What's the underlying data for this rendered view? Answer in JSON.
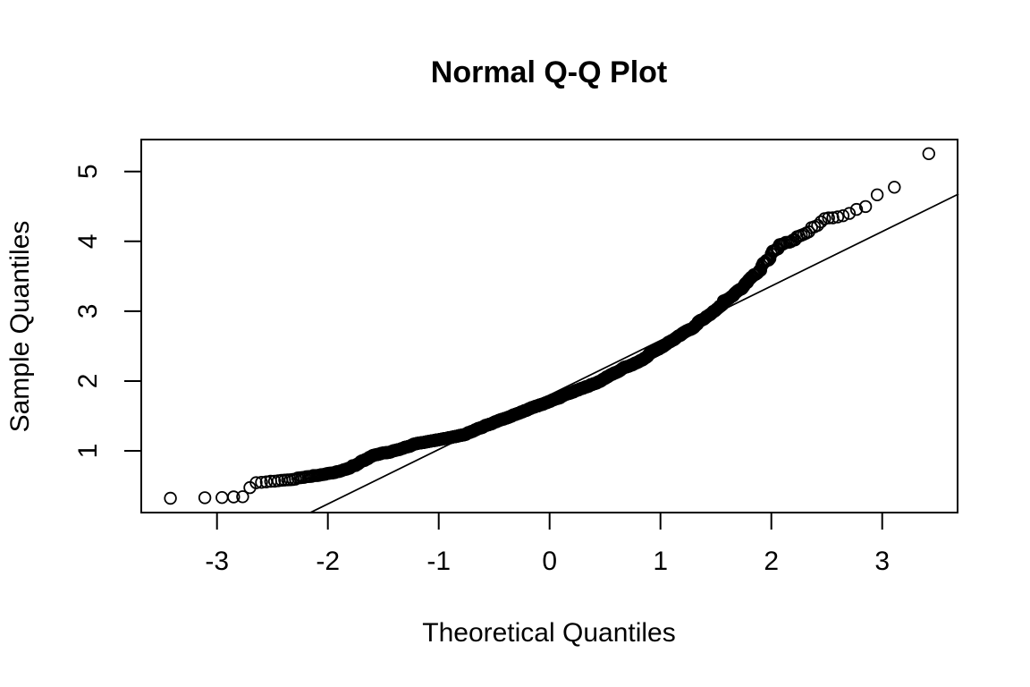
{
  "title": "Normal Q-Q Plot",
  "x_axis": {
    "label": "Theoretical Quantiles",
    "ticks": [
      -3,
      -2,
      -1,
      0,
      1,
      2,
      3
    ],
    "range": [
      -3.675,
      3.688
    ]
  },
  "y_axis": {
    "label": "Sample Quantiles",
    "ticks": [
      1,
      2,
      3,
      4,
      5
    ],
    "range": [
      0.115,
      5.457
    ]
  },
  "colors": {
    "foreground": "#000000",
    "background": "#ffffff"
  },
  "chart_data": {
    "type": "scatter",
    "subtype": "normal-qq-plot",
    "title": "Normal Q-Q Plot",
    "xlabel": "Theoretical Quantiles",
    "ylabel": "Sample Quantiles",
    "xlim": [
      -3.675,
      3.688
    ],
    "ylim": [
      0.115,
      5.457
    ],
    "grid": false,
    "marker": "open-circle",
    "n_points": 1600,
    "seed": 42,
    "jitter_sd": 0.032,
    "x_min_point": -3.42,
    "x_max_point": 3.42,
    "y_min_point": 0.32,
    "y_max_point": 5.24,
    "curve_points": [
      [
        -3.42,
        0.32
      ],
      [
        -3.1,
        0.33
      ],
      [
        -2.95,
        0.33
      ],
      [
        -2.86,
        0.34
      ],
      [
        -2.79,
        0.34
      ],
      [
        -2.74,
        0.35
      ],
      [
        -2.68,
        0.54
      ],
      [
        -2.5,
        0.57
      ],
      [
        -2.3,
        0.6
      ],
      [
        -2.0,
        0.67
      ],
      [
        -1.75,
        0.79
      ],
      [
        -1.62,
        0.92
      ],
      [
        -1.4,
        1.0
      ],
      [
        -1.2,
        1.1
      ],
      [
        -0.8,
        1.22
      ],
      [
        -0.4,
        1.47
      ],
      [
        0.0,
        1.71
      ],
      [
        0.4,
        1.96
      ],
      [
        0.8,
        2.28
      ],
      [
        1.2,
        2.67
      ],
      [
        1.45,
        2.95
      ],
      [
        1.7,
        3.3
      ],
      [
        1.9,
        3.6
      ],
      [
        2.05,
        3.92
      ],
      [
        2.2,
        4.02
      ],
      [
        2.32,
        4.1
      ],
      [
        2.45,
        4.28
      ],
      [
        2.6,
        4.35
      ],
      [
        2.73,
        4.42
      ],
      [
        2.87,
        4.53
      ],
      [
        2.96,
        4.66
      ],
      [
        3.11,
        4.76
      ],
      [
        3.42,
        5.24
      ]
    ],
    "reference_line": {
      "slope": 0.78,
      "intercept": 1.8
    }
  }
}
